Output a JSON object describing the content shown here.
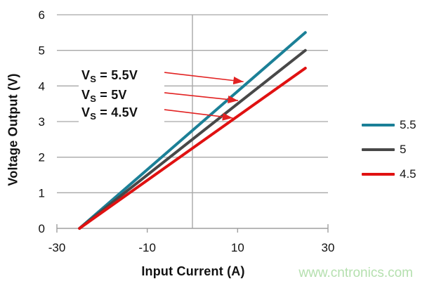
{
  "watermark": "www.cntronics.com",
  "chart_data": {
    "type": "line",
    "title": "",
    "xlabel": "Input Current (A)",
    "ylabel": "Voltage Output (V)",
    "xlim": [
      -30,
      30
    ],
    "ylim": [
      0,
      6
    ],
    "xticks": [
      -30,
      -10,
      10,
      30
    ],
    "yticks": [
      0,
      1,
      2,
      3,
      4,
      5,
      6
    ],
    "grid": {
      "horizontal": true,
      "vertical_at_zero": true
    },
    "series": [
      {
        "name": "5.5",
        "color": "#1b8097",
        "x": [
          -25,
          25
        ],
        "y": [
          0,
          5.5
        ]
      },
      {
        "name": "5",
        "color": "#484848",
        "x": [
          -25,
          25
        ],
        "y": [
          0,
          5.0
        ]
      },
      {
        "name": "4.5",
        "color": "#e01111",
        "x": [
          -25,
          25
        ],
        "y": [
          0,
          4.5
        ]
      }
    ],
    "legend": {
      "position": "right",
      "entries": [
        {
          "label": "5.5",
          "color": "#1b8097"
        },
        {
          "label": "5",
          "color": "#484848"
        },
        {
          "label": "4.5",
          "color": "#e01111"
        }
      ]
    },
    "annotations": [
      {
        "base": "V",
        "sub": "S",
        "rest": " = 5.5V",
        "x": -24.4,
        "y": 4.3,
        "arrow_from": [
          -6.2,
          4.38
        ],
        "arrow_to": [
          11.3,
          4.12
        ]
      },
      {
        "base": "V",
        "sub": "S",
        "rest": " = 5V",
        "x": -24.4,
        "y": 3.75,
        "arrow_from": [
          -6.2,
          3.81
        ],
        "arrow_to": [
          10.1,
          3.59
        ]
      },
      {
        "base": "V",
        "sub": "S",
        "rest": " = 4.5V",
        "x": -24.4,
        "y": 3.26,
        "arrow_from": [
          -6.5,
          3.34
        ],
        "arrow_to": [
          8.9,
          3.1
        ]
      }
    ],
    "colors": {
      "grid": "#a8a8a8",
      "axis": "#9f9f9f",
      "tick_label": "#111111",
      "annotation_arrow": "#e22222",
      "annotation_text": "#111111",
      "watermark": "#b5e0af"
    }
  }
}
